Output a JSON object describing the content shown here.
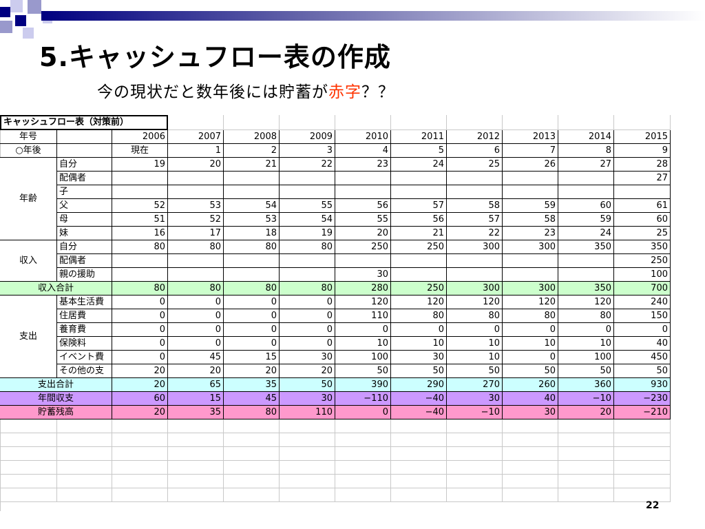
{
  "slide": {
    "title": "5.キャッシュフロー表の作成",
    "subtitle_main": "今の現状だと数年後には貯蓄が",
    "subtitle_red": "赤字",
    "subtitle_end": "？？",
    "page_number": "22",
    "colors": {
      "title": "#000000",
      "accent_red": "#ff3300",
      "deco_navy": "#000080",
      "deco_gray": "#9999cc"
    }
  },
  "chart_data": {
    "type": "table",
    "title": "キャッシュフロー表（対策前）",
    "columns": [
      "2006",
      "2007",
      "2008",
      "2009",
      "2010",
      "2011",
      "2012",
      "2013",
      "2014",
      "2015"
    ],
    "rows": [
      {
        "group": "",
        "label": "年号",
        "values": [
          "2006",
          "2007",
          "2008",
          "2009",
          "2010",
          "2011",
          "2012",
          "2013",
          "2014",
          "2015"
        ]
      },
      {
        "group": "",
        "label": "○年後",
        "values": [
          "現在",
          "1",
          "2",
          "3",
          "4",
          "5",
          "6",
          "7",
          "8",
          "9"
        ]
      },
      {
        "group": "年齢",
        "label": "自分",
        "values": [
          "19",
          "20",
          "21",
          "22",
          "23",
          "24",
          "25",
          "26",
          "27",
          "28"
        ]
      },
      {
        "group": "年齢",
        "label": "配偶者",
        "values": [
          "",
          "",
          "",
          "",
          "",
          "",
          "",
          "",
          "",
          "27"
        ]
      },
      {
        "group": "年齢",
        "label": "子",
        "values": [
          "",
          "",
          "",
          "",
          "",
          "",
          "",
          "",
          "",
          ""
        ]
      },
      {
        "group": "年齢",
        "label": "父",
        "values": [
          "52",
          "53",
          "54",
          "55",
          "56",
          "57",
          "58",
          "59",
          "60",
          "61"
        ]
      },
      {
        "group": "年齢",
        "label": "母",
        "values": [
          "51",
          "52",
          "53",
          "54",
          "55",
          "56",
          "57",
          "58",
          "59",
          "60"
        ]
      },
      {
        "group": "年齢",
        "label": "妹",
        "values": [
          "16",
          "17",
          "18",
          "19",
          "20",
          "21",
          "22",
          "23",
          "24",
          "25"
        ]
      },
      {
        "group": "収入",
        "label": "自分",
        "values": [
          "80",
          "80",
          "80",
          "80",
          "250",
          "250",
          "300",
          "300",
          "350",
          "350"
        ]
      },
      {
        "group": "収入",
        "label": "配偶者",
        "values": [
          "",
          "",
          "",
          "",
          "",
          "",
          "",
          "",
          "",
          "250"
        ]
      },
      {
        "group": "収入",
        "label": "親の援助",
        "values": [
          "",
          "",
          "",
          "",
          "30",
          "",
          "",
          "",
          "",
          "100"
        ]
      },
      {
        "group": "",
        "label": "収入合計",
        "values": [
          "80",
          "80",
          "80",
          "80",
          "280",
          "250",
          "300",
          "300",
          "350",
          "700"
        ]
      },
      {
        "group": "支出",
        "label": "基本生活費",
        "values": [
          "0",
          "0",
          "0",
          "0",
          "120",
          "120",
          "120",
          "120",
          "120",
          "240"
        ]
      },
      {
        "group": "支出",
        "label": "住居費",
        "values": [
          "0",
          "0",
          "0",
          "0",
          "110",
          "80",
          "80",
          "80",
          "80",
          "150"
        ]
      },
      {
        "group": "支出",
        "label": "養育費",
        "values": [
          "0",
          "0",
          "0",
          "0",
          "0",
          "0",
          "0",
          "0",
          "0",
          "0"
        ]
      },
      {
        "group": "支出",
        "label": "保険料",
        "values": [
          "0",
          "0",
          "0",
          "0",
          "10",
          "10",
          "10",
          "10",
          "10",
          "40"
        ]
      },
      {
        "group": "支出",
        "label": "イベント費",
        "values": [
          "0",
          "45",
          "15",
          "30",
          "100",
          "30",
          "10",
          "0",
          "100",
          "450"
        ]
      },
      {
        "group": "支出",
        "label": "その他の支",
        "values": [
          "20",
          "20",
          "20",
          "20",
          "50",
          "50",
          "50",
          "50",
          "50",
          "50"
        ]
      },
      {
        "group": "",
        "label": "支出合計",
        "values": [
          "20",
          "65",
          "35",
          "50",
          "390",
          "290",
          "270",
          "260",
          "360",
          "930"
        ]
      },
      {
        "group": "",
        "label": "年間収支",
        "values": [
          "60",
          "15",
          "45",
          "30",
          "−110",
          "−40",
          "30",
          "40",
          "−10",
          "−230"
        ]
      },
      {
        "group": "",
        "label": "貯蓄残高",
        "values": [
          "20",
          "35",
          "80",
          "110",
          "0",
          "−40",
          "−10",
          "30",
          "20",
          "−210"
        ]
      }
    ],
    "row_colors": {
      "収入合計": "#ccffcc",
      "支出合計": "#ccffff",
      "年間収支": "#cc99ff",
      "貯蓄残高": "#ff99cc"
    }
  }
}
